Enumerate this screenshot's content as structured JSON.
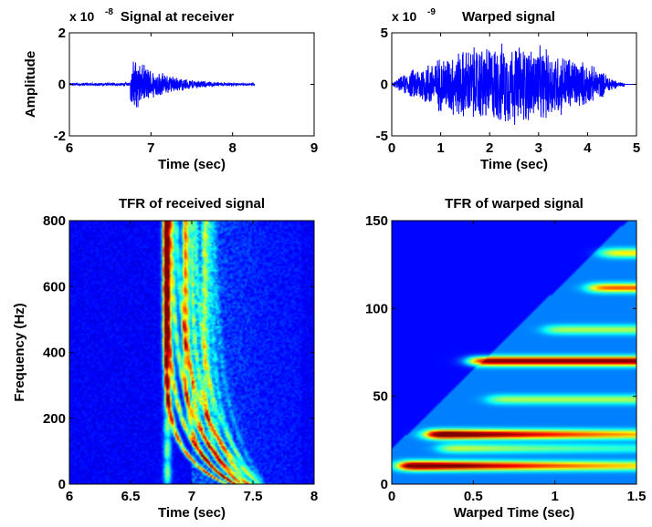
{
  "colors": {
    "signal": "#0000ff",
    "axes": "#000000",
    "background": "#ffffff",
    "colormap": "jet"
  },
  "chart_data": [
    {
      "id": "signal-at-receiver",
      "type": "line",
      "title": "Signal at receiver",
      "exponent": {
        "base": "x 10",
        "power": "-8"
      },
      "xlabel": "Time (sec)",
      "ylabel": "Amplitude",
      "xlim": [
        6,
        9
      ],
      "ylim": [
        -2,
        2
      ],
      "xticks": [
        "6",
        "7",
        "8",
        "9"
      ],
      "yticks": [
        "-2",
        "0",
        "2"
      ],
      "grid": false,
      "signal": {
        "start": 6.75,
        "end": 8.27,
        "peak": 1.2,
        "decay": "exponential",
        "noise_floor": 0.05
      }
    },
    {
      "id": "warped-signal",
      "type": "line",
      "title": "Warped signal",
      "exponent": {
        "base": "x 10",
        "power": "-9"
      },
      "xlabel": "Time (sec)",
      "ylabel": "",
      "xlim": [
        0,
        5
      ],
      "ylim": [
        -5,
        5
      ],
      "xticks": [
        "0",
        "1",
        "2",
        "3",
        "4",
        "5"
      ],
      "yticks": [
        "-5",
        "0",
        "5"
      ],
      "grid": false,
      "signal": {
        "start": 0.0,
        "end": 4.75,
        "peak": 4.3,
        "envelope_peak_at": 2.2
      }
    },
    {
      "id": "tfr-received",
      "type": "heatmap",
      "title": "TFR of received signal",
      "xlabel": "Time (sec)",
      "ylabel": "Frequency (Hz)",
      "xlim": [
        6,
        8
      ],
      "ylim": [
        0,
        800
      ],
      "xticks": [
        "6",
        "6.5",
        "7",
        "7.5",
        "8"
      ],
      "yticks": [
        "0",
        "200",
        "400",
        "600",
        "800"
      ],
      "colormap": "jet",
      "modes": [
        {
          "mode": 1,
          "arrival_sec": 6.78,
          "end_sec": 7.27
        },
        {
          "mode": 2,
          "arrival_sec": 6.8,
          "end_sec": 7.35
        },
        {
          "mode": 3,
          "arrival_sec": 6.83,
          "end_sec": 7.45
        },
        {
          "mode": 4,
          "arrival_sec": 6.86,
          "end_sec": 7.55
        }
      ]
    },
    {
      "id": "tfr-warped",
      "type": "heatmap",
      "title": "TFR of warped signal",
      "xlabel": "Warped Time (sec)",
      "ylabel": "",
      "xlim": [
        0,
        1.5
      ],
      "ylim": [
        0,
        150
      ],
      "xticks": [
        "0",
        "0.5",
        "1",
        "1.5"
      ],
      "yticks": [
        "0",
        "50",
        "100",
        "150"
      ],
      "colormap": "jet",
      "bands": [
        {
          "freq_hz": 10,
          "start_sec": 0.05,
          "intensity": 1.0
        },
        {
          "freq_hz": 28,
          "start_sec": 0.22,
          "intensity": 1.0
        },
        {
          "freq_hz": 70,
          "start_sec": 0.48,
          "intensity": 0.8
        },
        {
          "freq_hz": 112,
          "start_sec": 1.22,
          "intensity": 0.55
        },
        {
          "freq_hz": 132,
          "start_sec": 1.3,
          "intensity": 0.4
        },
        {
          "freq_hz": 20,
          "start_sec": 0.3,
          "intensity": 0.35
        },
        {
          "freq_hz": 48,
          "start_sec": 0.6,
          "intensity": 0.3
        },
        {
          "freq_hz": 88,
          "start_sec": 0.95,
          "intensity": 0.3
        }
      ]
    }
  ]
}
